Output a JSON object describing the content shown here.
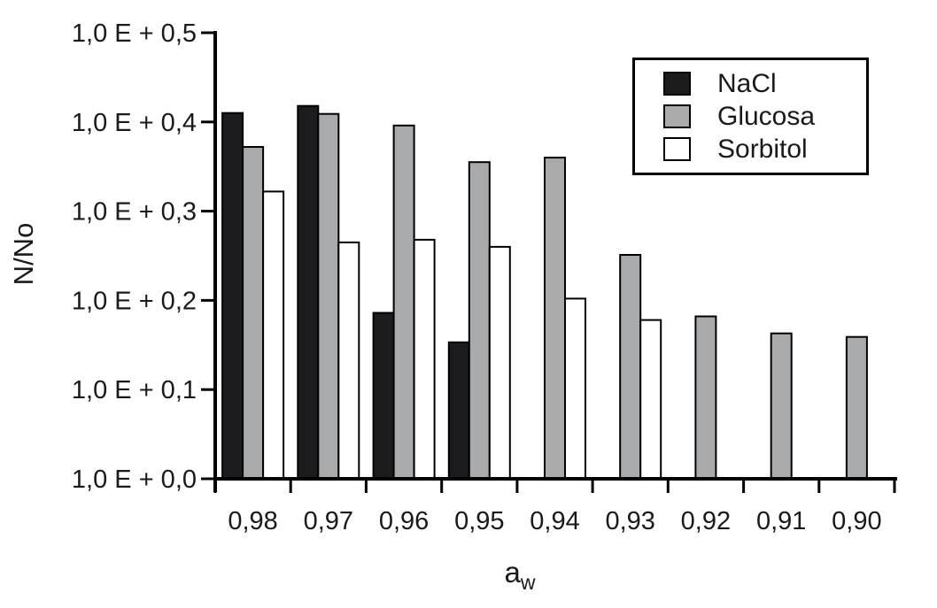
{
  "chart_data": {
    "type": "bar",
    "title": "",
    "ylabel": "N/No",
    "xlabel": "a_w",
    "xlabel_parts": {
      "base": "a",
      "sub": "w"
    },
    "categories": [
      "0,98",
      "0,97",
      "0,96",
      "0,95",
      "0,94",
      "0,93",
      "0,92",
      "0,91",
      "0,90"
    ],
    "series": [
      {
        "name": "NaCl",
        "color": "#1c1c1e",
        "values": [
          0.41,
          0.418,
          0.186,
          0.153,
          null,
          null,
          null,
          null,
          null
        ]
      },
      {
        "name": "Glucosa",
        "color": "#a8aaac",
        "values": [
          0.372,
          0.409,
          0.396,
          0.355,
          0.36,
          0.251,
          0.182,
          0.163,
          0.159
        ]
      },
      {
        "name": "Sorbitol",
        "color": "#ffffff",
        "values": [
          0.322,
          0.265,
          0.268,
          0.26,
          0.202,
          0.178,
          null,
          null,
          null
        ]
      }
    ],
    "y_ticks": [
      {
        "label": "1,0 E + 0,5",
        "value": 0.5
      },
      {
        "label": "1,0 E + 0,4",
        "value": 0.4
      },
      {
        "label": "1,0 E + 0,3",
        "value": 0.3
      },
      {
        "label": "1,0 E + 0,2",
        "value": 0.2
      },
      {
        "label": "1,0 E + 0,1",
        "value": 0.1
      },
      {
        "label": "1,0 E + 0,0",
        "value": 0.0
      }
    ],
    "ylim": [
      0,
      0.5
    ],
    "grid": false,
    "legend_position": "top-right",
    "axis_color": "#000000",
    "bar_outline_color": "#000000"
  }
}
